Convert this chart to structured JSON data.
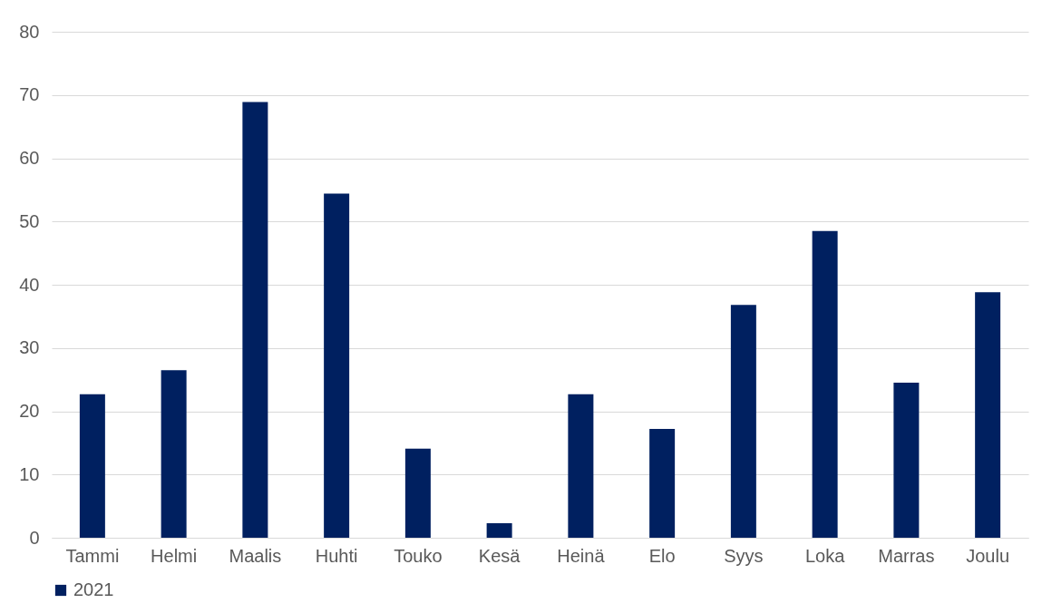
{
  "chart_data": {
    "type": "bar",
    "categories": [
      "Tammi",
      "Helmi",
      "Maalis",
      "Huhti",
      "Touko",
      "Kesä",
      "Heinä",
      "Elo",
      "Syys",
      "Loka",
      "Marras",
      "Joulu"
    ],
    "series": [
      {
        "name": "2021",
        "color": "#002060",
        "values": [
          22.7,
          26.5,
          68.9,
          54.4,
          14.1,
          2.3,
          22.7,
          17.2,
          36.8,
          48.5,
          24.5,
          38.8
        ]
      }
    ],
    "ylim": [
      0,
      80
    ],
    "yticks": [
      0,
      10,
      20,
      30,
      40,
      50,
      60,
      70,
      80
    ],
    "grid": "y",
    "legend": "bottom"
  }
}
